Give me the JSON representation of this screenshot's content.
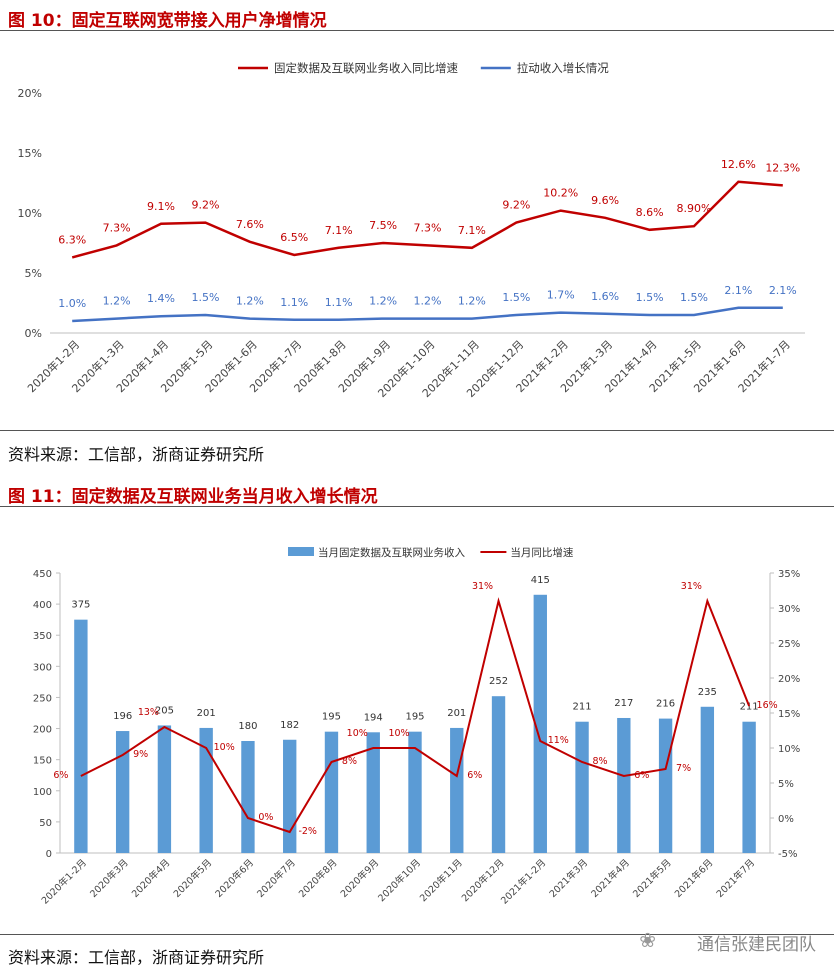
{
  "figure10": {
    "title": "图 10：固定互联网宽带接入用户净增情况",
    "source": "资料来源：工信部，浙商证券研究所"
  },
  "figure11": {
    "title": "图 11：固定数据及互联网业务当月收入增长情况",
    "source": "资料来源：工信部，浙商证券研究所"
  },
  "watermark": "通信张建民团队",
  "colors": {
    "red": "#c00000",
    "blue": "#4472c4",
    "bar": "#5b9bd5",
    "title_red": "#c00000"
  },
  "chart_data": [
    {
      "type": "line",
      "categories": [
        "2020年1-2月",
        "2020年1-3月",
        "2020年1-4月",
        "2020年1-5月",
        "2020年1-6月",
        "2020年1-7月",
        "2020年1-8月",
        "2020年1-9月",
        "2020年1-10月",
        "2020年1-11月",
        "2020年1-12月",
        "2021年1-2月",
        "2021年1-3月",
        "2021年1-4月",
        "2021年1-5月",
        "2021年1-6月",
        "2021年1-7月"
      ],
      "series": [
        {
          "name": "固定数据及互联网业务收入同比增速",
          "color": "#c00000",
          "values": [
            6.3,
            7.3,
            9.1,
            9.2,
            7.6,
            6.5,
            7.1,
            7.5,
            7.3,
            7.1,
            9.2,
            10.2,
            9.6,
            8.6,
            8.9,
            12.6,
            12.3
          ],
          "labels": [
            "6.3%",
            "7.3%",
            "9.1%",
            "9.2%",
            "7.6%",
            "6.5%",
            "7.1%",
            "7.5%",
            "7.3%",
            "7.1%",
            "9.2%",
            "10.2%",
            "9.6%",
            "8.6%",
            "8.90%",
            "12.6%",
            "12.3%"
          ]
        },
        {
          "name": "拉动收入增长情况",
          "color": "#4472c4",
          "values": [
            1.0,
            1.2,
            1.4,
            1.5,
            1.2,
            1.1,
            1.1,
            1.2,
            1.2,
            1.2,
            1.5,
            1.7,
            1.6,
            1.5,
            1.5,
            2.1,
            2.1
          ],
          "labels": [
            "1.0%",
            "1.2%",
            "1.4%",
            "1.5%",
            "1.2%",
            "1.1%",
            "1.1%",
            "1.2%",
            "1.2%",
            "1.2%",
            "1.5%",
            "1.7%",
            "1.6%",
            "1.5%",
            "1.5%",
            "2.1%",
            "2.1%"
          ]
        }
      ],
      "ylim": [
        0,
        20
      ],
      "yticks": [
        "0%",
        "5%",
        "10%",
        "15%",
        "20%"
      ],
      "legend": "top"
    },
    {
      "type": "bar+line",
      "categories": [
        "2020年1-2月",
        "2020年3月",
        "2020年4月",
        "2020年5月",
        "2020年6月",
        "2020年7月",
        "2020年8月",
        "2020年9月",
        "2020年10月",
        "2020年11月",
        "2020年12月",
        "2021年1-2月",
        "2021年3月",
        "2021年4月",
        "2021年5月",
        "2021年6月",
        "2021年7月"
      ],
      "bar_series": {
        "name": "当月固定数据及互联网业务收入",
        "color": "#5b9bd5",
        "values": [
          375,
          196,
          205,
          201,
          180,
          182,
          195,
          194,
          195,
          201,
          252,
          415,
          211,
          217,
          216,
          235,
          211
        ]
      },
      "line_series": {
        "name": "当月同比增速",
        "color": "#c00000",
        "values": [
          6,
          9,
          13,
          10,
          0,
          -2,
          8,
          10,
          10,
          6,
          31,
          11,
          8,
          6,
          7,
          31,
          16
        ],
        "labels": [
          "6%",
          "9%",
          "13%",
          "10%",
          "0%",
          "-2%",
          "8%",
          "10%",
          "10%",
          "6%",
          "31%",
          "11%",
          "8%",
          "6%",
          "7%",
          "31%",
          "16%"
        ]
      },
      "y_left": {
        "lim": [
          0,
          450
        ],
        "ticks": [
          "0",
          "50",
          "100",
          "150",
          "200",
          "250",
          "300",
          "350",
          "400",
          "450"
        ]
      },
      "y_right": {
        "lim": [
          -5,
          35
        ],
        "ticks": [
          "-5%",
          "0%",
          "5%",
          "10%",
          "15%",
          "20%",
          "25%",
          "30%",
          "35%"
        ]
      },
      "legend": "top"
    }
  ]
}
